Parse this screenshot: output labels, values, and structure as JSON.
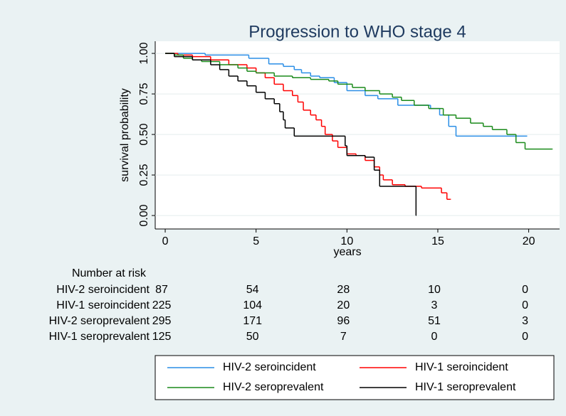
{
  "chart_data": {
    "type": "line",
    "step": "post",
    "title": "Progression to WHO stage 4",
    "x_label": "years",
    "y_label": "survival probability",
    "xlim": [
      -0.55,
      21.7
    ],
    "ylim": [
      -0.083,
      1.075
    ],
    "xticks": [
      0,
      5,
      10,
      15,
      20
    ],
    "yticks": [
      {
        "value": 0,
        "label": "0.00"
      },
      {
        "value": 0.25,
        "label": "0.25"
      },
      {
        "value": 0.5,
        "label": "0.50"
      },
      {
        "value": 0.75,
        "label": "0.75"
      },
      {
        "value": 1,
        "label": "1.00"
      }
    ],
    "grid": true,
    "legend": "bottom",
    "series": [
      {
        "name": "HIV-2 seroincident",
        "color": "#2a8ee6",
        "x": [
          0,
          2.2,
          4.6,
          5.7,
          6.5,
          7.1,
          7.5,
          8,
          8.5,
          9.3,
          10,
          11,
          11.7,
          12.8,
          14.6,
          15.1,
          15.6,
          16,
          19.9
        ],
        "values": [
          1,
          0.99,
          0.97,
          0.935,
          0.92,
          0.9,
          0.88,
          0.86,
          0.85,
          0.82,
          0.77,
          0.74,
          0.72,
          0.68,
          0.66,
          0.62,
          0.55,
          0.49,
          0.49
        ]
      },
      {
        "name": "HIV-1 seroincident",
        "color": "#ff0000",
        "x": [
          0,
          0.7,
          1.5,
          2.5,
          3.5,
          4.5,
          5,
          5.5,
          6,
          6.5,
          7,
          7.3,
          7.6,
          8,
          8.3,
          8.6,
          8.8,
          9.2,
          9.5,
          10,
          10.5,
          11,
          11.5,
          11.8,
          12,
          12.5,
          13.2,
          14.1,
          15.2,
          15.5,
          15.7
        ],
        "values": [
          1,
          0.99,
          0.98,
          0.96,
          0.93,
          0.91,
          0.88,
          0.85,
          0.81,
          0.77,
          0.74,
          0.7,
          0.65,
          0.62,
          0.59,
          0.55,
          0.5,
          0.46,
          0.42,
          0.38,
          0.37,
          0.34,
          0.3,
          0.25,
          0.22,
          0.19,
          0.18,
          0.17,
          0.14,
          0.1,
          0.1
        ]
      },
      {
        "name": "HIV-2 seroprevalent",
        "color": "#1a8a1a",
        "x": [
          0,
          0.5,
          1,
          1.5,
          2,
          3,
          4,
          4.5,
          5,
          6,
          7,
          8,
          9,
          9.5,
          10.3,
          11,
          11.8,
          12.5,
          13,
          13.7,
          14.5,
          15.3,
          16,
          16.8,
          17.5,
          18,
          18.8,
          19.3,
          19.8,
          21.3
        ],
        "values": [
          1,
          0.99,
          0.97,
          0.96,
          0.95,
          0.93,
          0.91,
          0.89,
          0.88,
          0.86,
          0.85,
          0.84,
          0.83,
          0.81,
          0.79,
          0.77,
          0.75,
          0.73,
          0.71,
          0.68,
          0.66,
          0.62,
          0.6,
          0.57,
          0.55,
          0.53,
          0.5,
          0.45,
          0.41,
          0.41
        ]
      },
      {
        "name": "HIV-1 seroprevalent",
        "color": "#000000",
        "x": [
          0,
          0.5,
          1.5,
          2.5,
          3,
          3.5,
          4,
          4.5,
          5,
          5.5,
          6,
          6.3,
          6.5,
          6.6,
          7.1,
          9.9,
          10,
          11,
          11.5,
          11.8,
          13.8
        ],
        "values": [
          1,
          0.98,
          0.96,
          0.93,
          0.9,
          0.86,
          0.83,
          0.8,
          0.76,
          0.72,
          0.69,
          0.64,
          0.59,
          0.54,
          0.49,
          0.43,
          0.37,
          0.36,
          0.28,
          0.18,
          0
        ]
      }
    ],
    "risk_table": {
      "title": "Number at risk",
      "rows": [
        {
          "name": "HIV-2 seroincident",
          "values": [
            87,
            54,
            28,
            10,
            0
          ]
        },
        {
          "name": "HIV-1 seroincident",
          "values": [
            225,
            104,
            20,
            3,
            0
          ]
        },
        {
          "name": "HIV-2 seroprevalent",
          "values": [
            295,
            171,
            96,
            51,
            3
          ]
        },
        {
          "name": "HIV-1 seroprevalent",
          "values": [
            125,
            50,
            7,
            0,
            0
          ]
        }
      ]
    }
  }
}
